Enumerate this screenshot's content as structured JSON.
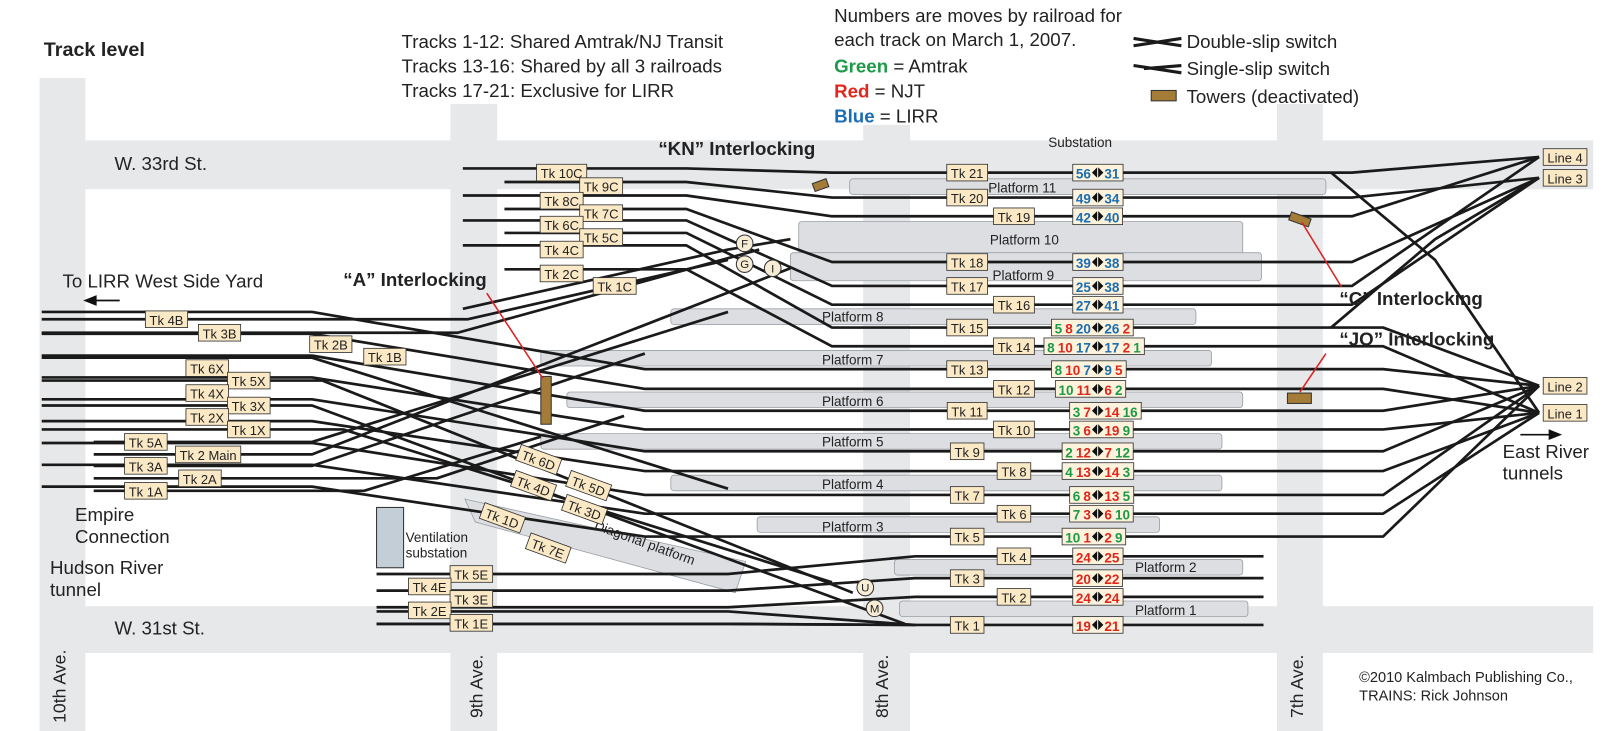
{
  "header": {
    "title": "Track level"
  },
  "notes": [
    "Tracks 1-12: Shared Amtrak/NJ Transit",
    "Tracks 13-16: Shared by all 3 railroads",
    "Tracks 17-21: Exclusive for LIRR"
  ],
  "moves_key": {
    "lines": [
      "Numbers are moves by railroad for",
      "each track on March 1, 2007."
    ],
    "railroads": [
      {
        "color_name": "Green",
        "name": "= Amtrak",
        "color": "#1d9a48"
      },
      {
        "color_name": "Red",
        "name": "= NJT",
        "color": "#e1261c"
      },
      {
        "color_name": "Blue",
        "name": "= LIRR",
        "color": "#1b6db4"
      }
    ]
  },
  "legend": [
    "Double-slip switch",
    "Single-slip switch",
    "Towers (deactivated)"
  ],
  "streets": [
    "W. 33rd St.",
    "W. 31st St."
  ],
  "avenues": [
    "10th Ave.",
    "9th Ave.",
    "8th Ave.",
    "7th Ave."
  ],
  "places": [
    {
      "lines": [
        "To LIRR West Side Yard"
      ]
    },
    {
      "lines": [
        "Substation"
      ]
    },
    {
      "lines": [
        "Ventilation",
        "substation"
      ]
    },
    {
      "lines": [
        "Empire",
        "Connection"
      ]
    },
    {
      "lines": [
        "Hudson River",
        "tunnel"
      ]
    },
    {
      "lines": [
        "East River",
        "tunnels"
      ]
    }
  ],
  "interlockings": [
    "“KN” Interlocking",
    "“A” Interlocking",
    "“C” Interlocking",
    "“JO” Interlocking"
  ],
  "track_tags": [
    "Tk 10C",
    "Tk 9C",
    "Tk 8C",
    "Tk 7C",
    "Tk 6C",
    "Tk 5C",
    "Tk 4C",
    "Tk 2C",
    "Tk 1C",
    "Tk 4B",
    "Tk 3B",
    "Tk 2B",
    "Tk 1B",
    "Tk 6X",
    "Tk 5X",
    "Tk 4X",
    "Tk 3X",
    "Tk 2X",
    "Tk 1X",
    "Tk 5A",
    "Tk 2 Main",
    "Tk 3A",
    "Tk 2A",
    "Tk 1A",
    "Tk 6D",
    "Tk 5D",
    "Tk 4D",
    "Tk 3D",
    "Tk 1D",
    "Tk 7E",
    "Tk 5E",
    "Tk 4E",
    "Tk 3E",
    "Tk 2E",
    "Tk 1E"
  ],
  "lines": [
    "Line 4",
    "Line 3",
    "Line 2",
    "Line 1"
  ],
  "platforms": [
    "Platform 11",
    "Platform 10",
    "Platform 9",
    "Platform 8",
    "Platform 7",
    "Platform 6",
    "Platform 5",
    "Platform 4",
    "Platform 3",
    "Platform 2",
    "Platform 1",
    "Diagonal platform"
  ],
  "junctions": [
    "F",
    "G",
    "I",
    "U",
    "M"
  ],
  "tracks": [
    {
      "label": "Tk 21",
      "left": {
        "values": [
          56
        ],
        "colors": [
          "#1b6db4"
        ]
      },
      "right": {
        "values": [
          31
        ],
        "colors": [
          "#1b6db4"
        ]
      }
    },
    {
      "label": "Tk 20",
      "left": {
        "values": [
          49
        ],
        "colors": [
          "#1b6db4"
        ]
      },
      "right": {
        "values": [
          34
        ],
        "colors": [
          "#1b6db4"
        ]
      }
    },
    {
      "label": "Tk 19",
      "left": {
        "values": [
          42
        ],
        "colors": [
          "#1b6db4"
        ]
      },
      "right": {
        "values": [
          40
        ],
        "colors": [
          "#1b6db4"
        ]
      }
    },
    {
      "label": "Tk 18",
      "left": {
        "values": [
          39
        ],
        "colors": [
          "#1b6db4"
        ]
      },
      "right": {
        "values": [
          38
        ],
        "colors": [
          "#1b6db4"
        ]
      }
    },
    {
      "label": "Tk 17",
      "left": {
        "values": [
          25
        ],
        "colors": [
          "#1b6db4"
        ]
      },
      "right": {
        "values": [
          38
        ],
        "colors": [
          "#1b6db4"
        ]
      }
    },
    {
      "label": "Tk 16",
      "left": {
        "values": [
          27
        ],
        "colors": [
          "#1b6db4"
        ]
      },
      "right": {
        "values": [
          41
        ],
        "colors": [
          "#1b6db4"
        ]
      }
    },
    {
      "label": "Tk 15",
      "left": {
        "values": [
          5,
          8,
          20
        ],
        "colors": [
          "#1d9a48",
          "#e1261c",
          "#1b6db4"
        ]
      },
      "right": {
        "values": [
          26,
          2
        ],
        "colors": [
          "#1b6db4",
          "#e1261c"
        ]
      }
    },
    {
      "label": "Tk 14",
      "left": {
        "values": [
          8,
          10,
          17
        ],
        "colors": [
          "#1d9a48",
          "#e1261c",
          "#1b6db4"
        ]
      },
      "right": {
        "values": [
          17,
          2,
          1
        ],
        "colors": [
          "#1b6db4",
          "#e1261c",
          "#1d9a48"
        ]
      }
    },
    {
      "label": "Tk 13",
      "left": {
        "values": [
          8,
          10,
          7
        ],
        "colors": [
          "#1d9a48",
          "#e1261c",
          "#1b6db4"
        ]
      },
      "right": {
        "values": [
          9,
          5
        ],
        "colors": [
          "#1b6db4",
          "#e1261c"
        ]
      }
    },
    {
      "label": "Tk 12",
      "left": {
        "values": [
          10,
          11
        ],
        "colors": [
          "#1d9a48",
          "#e1261c"
        ]
      },
      "right": {
        "values": [
          6,
          2
        ],
        "colors": [
          "#e1261c",
          "#1d9a48"
        ]
      }
    },
    {
      "label": "Tk 11",
      "left": {
        "values": [
          3,
          7
        ],
        "colors": [
          "#1d9a48",
          "#e1261c"
        ]
      },
      "right": {
        "values": [
          14,
          16
        ],
        "colors": [
          "#e1261c",
          "#1d9a48"
        ]
      }
    },
    {
      "label": "Tk 10",
      "left": {
        "values": [
          3,
          6
        ],
        "colors": [
          "#1d9a48",
          "#e1261c"
        ]
      },
      "right": {
        "values": [
          19,
          9
        ],
        "colors": [
          "#e1261c",
          "#1d9a48"
        ]
      }
    },
    {
      "label": "Tk 9",
      "left": {
        "values": [
          2,
          12
        ],
        "colors": [
          "#1d9a48",
          "#e1261c"
        ]
      },
      "right": {
        "values": [
          7,
          12
        ],
        "colors": [
          "#e1261c",
          "#1d9a48"
        ]
      }
    },
    {
      "label": "Tk 8",
      "left": {
        "values": [
          4,
          13
        ],
        "colors": [
          "#1d9a48",
          "#e1261c"
        ]
      },
      "right": {
        "values": [
          14,
          3
        ],
        "colors": [
          "#e1261c",
          "#1d9a48"
        ]
      }
    },
    {
      "label": "Tk 7",
      "left": {
        "values": [
          6,
          8
        ],
        "colors": [
          "#1d9a48",
          "#e1261c"
        ]
      },
      "right": {
        "values": [
          13,
          5
        ],
        "colors": [
          "#e1261c",
          "#1d9a48"
        ]
      }
    },
    {
      "label": "Tk 6",
      "left": {
        "values": [
          7,
          3
        ],
        "colors": [
          "#1d9a48",
          "#e1261c"
        ]
      },
      "right": {
        "values": [
          6,
          10
        ],
        "colors": [
          "#e1261c",
          "#1d9a48"
        ]
      }
    },
    {
      "label": "Tk 5",
      "left": {
        "values": [
          10,
          1
        ],
        "colors": [
          "#1d9a48",
          "#e1261c"
        ]
      },
      "right": {
        "values": [
          2,
          9
        ],
        "colors": [
          "#e1261c",
          "#1d9a48"
        ]
      }
    },
    {
      "label": "Tk 4",
      "left": {
        "values": [
          24
        ],
        "colors": [
          "#e1261c"
        ]
      },
      "right": {
        "values": [
          25
        ],
        "colors": [
          "#e1261c"
        ]
      }
    },
    {
      "label": "Tk 3",
      "left": {
        "values": [
          20
        ],
        "colors": [
          "#e1261c"
        ]
      },
      "right": {
        "values": [
          22
        ],
        "colors": [
          "#e1261c"
        ]
      }
    },
    {
      "label": "Tk 2",
      "left": {
        "values": [
          24
        ],
        "colors": [
          "#e1261c"
        ]
      },
      "right": {
        "values": [
          24
        ],
        "colors": [
          "#e1261c"
        ]
      }
    },
    {
      "label": "Tk 1",
      "left": {
        "values": [
          19
        ],
        "colors": [
          "#e1261c"
        ]
      },
      "right": {
        "values": [
          21
        ],
        "colors": [
          "#e1261c"
        ]
      }
    }
  ],
  "credit": [
    "©2010 Kalmbach Publishing Co.,",
    "TRAINS: Rick Johnson"
  ]
}
